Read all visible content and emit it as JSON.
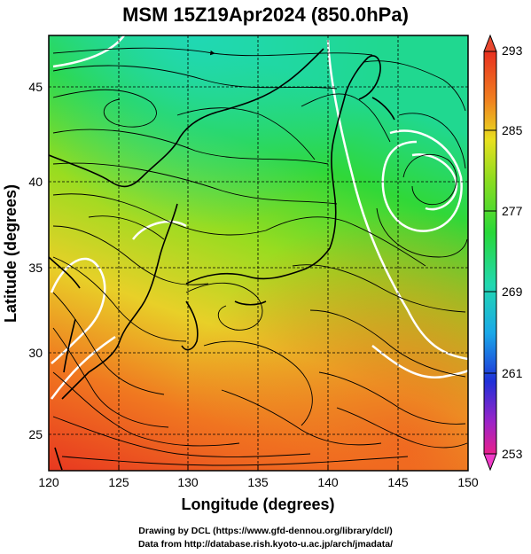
{
  "title": "MSM 15Z19Apr2024 (850.0hPa)",
  "xlabel": "Longitude (degrees)",
  "ylabel": "Latitude  (degrees)",
  "x_ticks": [
    "120",
    "125",
    "130",
    "135",
    "140",
    "145",
    "150"
  ],
  "y_ticks": [
    "25",
    "30",
    "35",
    "40",
    "45"
  ],
  "colorbar": {
    "labels": [
      "293",
      "285",
      "277",
      "269",
      "261",
      "253"
    ],
    "min": 253,
    "max": 293,
    "colors": [
      "#e8208c",
      "#9b24c8",
      "#2030d8",
      "#1aa8e8",
      "#22d8b0",
      "#28d838",
      "#8cdc20",
      "#e8e020",
      "#f08020",
      "#e83020"
    ]
  },
  "credits": {
    "line1": "Drawing by DCL (https://www.gfd-dennou.org/library/dcl/)",
    "line2": "Data from http://database.rish.kyoto-u.ac.jp/arch/jmadata/"
  },
  "chart_data": {
    "type": "heatmap",
    "field": "temperature at 850.0hPa with wind streamlines",
    "xlim": [
      120,
      150
    ],
    "ylim": [
      22.5,
      48
    ],
    "colorbar_range": [
      253,
      293
    ],
    "grid": true
  }
}
